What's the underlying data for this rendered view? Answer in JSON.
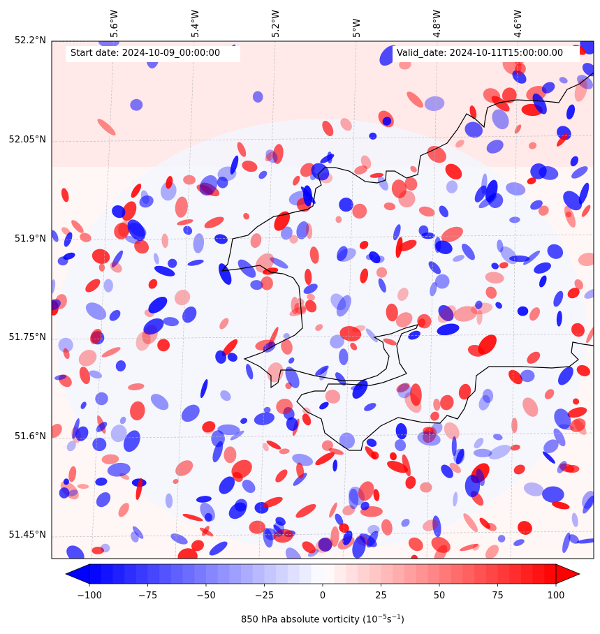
{
  "map": {
    "header_left": "Start date: 2024-10-09_00:00:00",
    "header_right": "Valid_date: 2024-10-11T15:00:00.00",
    "lat_labels": [
      "52.2°N",
      "52.05°N",
      "51.9°N",
      "51.75°N",
      "51.6°N",
      "51.45°N"
    ],
    "lon_labels": [
      "5.6°W",
      "5.4°W",
      "5.2°W",
      "5°W",
      "4.8°W",
      "4.6°W"
    ],
    "field": "850 hPa absolute vorticity",
    "extent": {
      "lon_min": -5.75,
      "lon_max": -4.48,
      "lat_min": 51.42,
      "lat_max": 52.2
    }
  },
  "colorbar": {
    "label": "850 hPa absolute vorticity (10",
    "label_exp1": "−5",
    "label_mid": "s",
    "label_exp2": "−1",
    "label_close": ")",
    "ticks": [
      "−100",
      "−75",
      "−50",
      "−25",
      "0",
      "25",
      "50",
      "75",
      "100"
    ],
    "range": [
      -100,
      100
    ],
    "colors": {
      "negative": "#0000ff",
      "zero": "#ffffff",
      "positive": "#ff0000"
    }
  }
}
